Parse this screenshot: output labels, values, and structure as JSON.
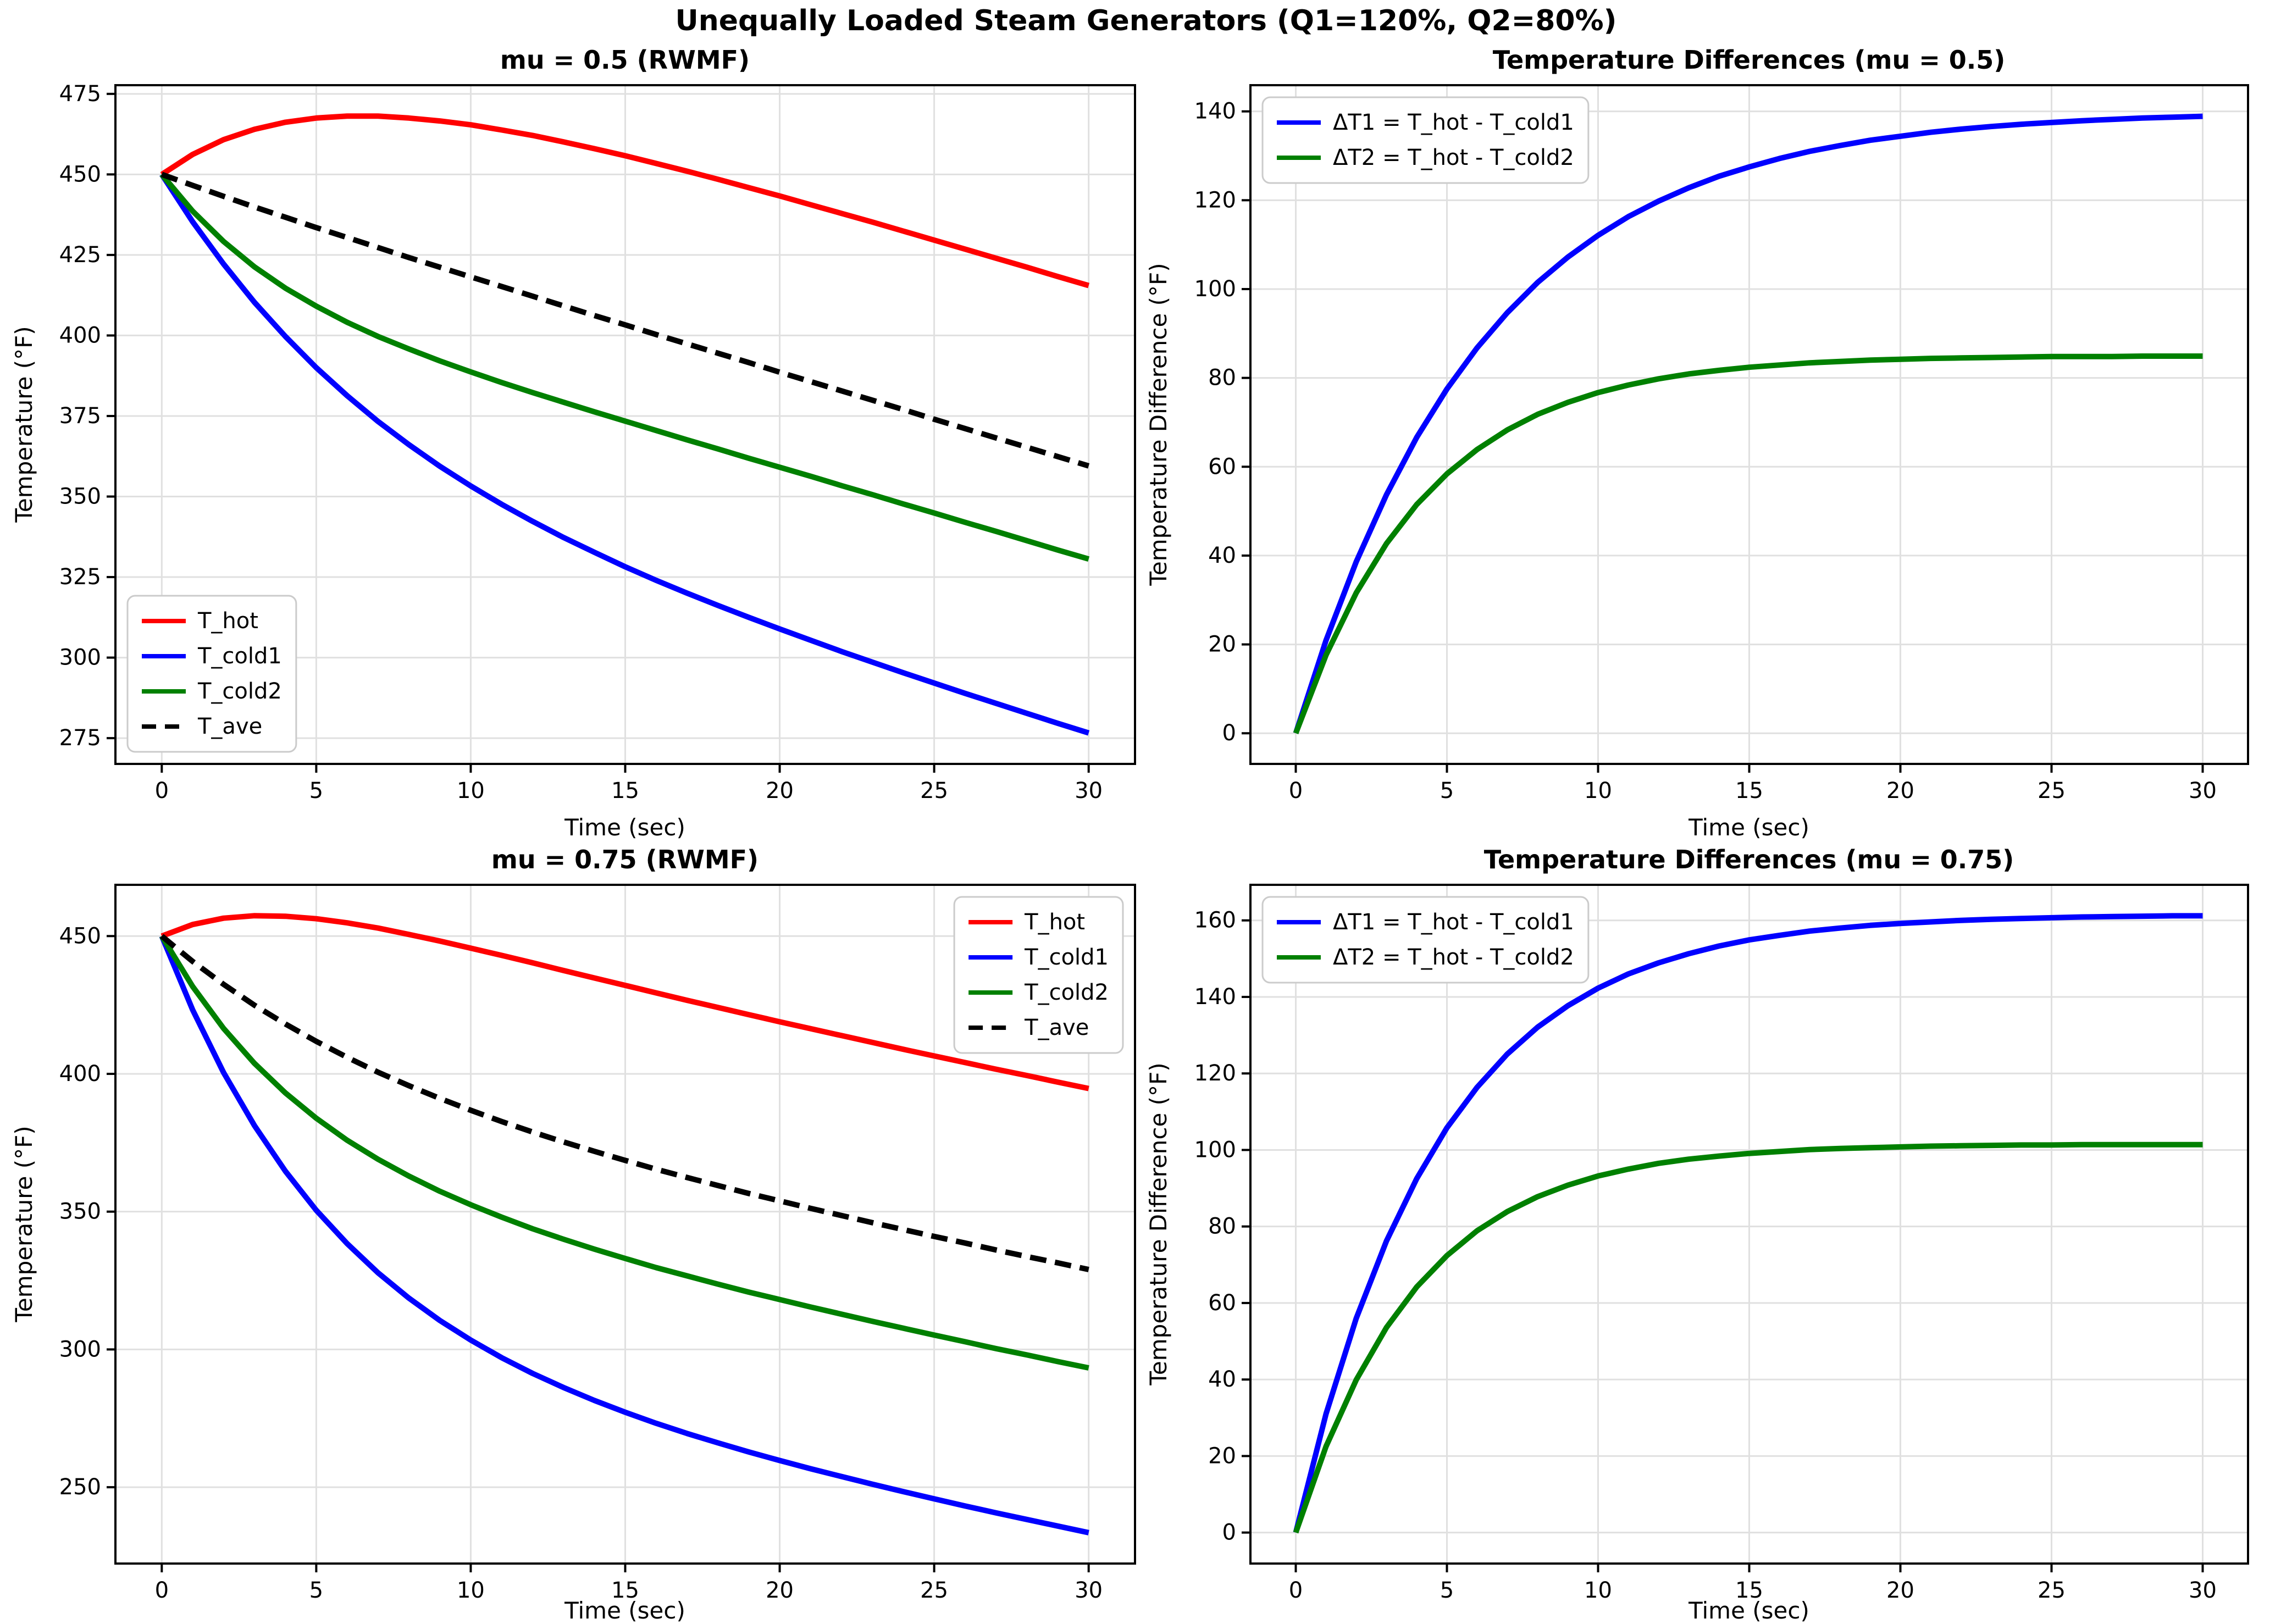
{
  "figure": {
    "suptitle": "Unequally Loaded Steam Generators (Q1=120%, Q2=80%)"
  },
  "colors": {
    "t_hot": "#ff0000",
    "t_cold1": "#0000ff",
    "t_cold2": "#008000",
    "t_ave": "#000000",
    "grid": "#e0e0e0",
    "legend_border": "#cbcbcb"
  },
  "chart_data": [
    {
      "type": "line",
      "title": "mu = 0.5 (RWMF)",
      "xlabel": "Time (sec)",
      "ylabel": "Temperature (°F)",
      "xlim": [
        -1.5,
        31.5
      ],
      "ylim": [
        267.0,
        477.7
      ],
      "xticks": [
        0,
        5,
        10,
        15,
        20,
        25,
        30
      ],
      "yticks": [
        275,
        300,
        325,
        350,
        375,
        400,
        425,
        450,
        475
      ],
      "grid": true,
      "legend": "lower left",
      "x": [
        0,
        1,
        2,
        3,
        4,
        5,
        6,
        7,
        8,
        9,
        10,
        11,
        12,
        13,
        14,
        15,
        16,
        17,
        18,
        19,
        20,
        21,
        22,
        23,
        24,
        25,
        26,
        27,
        28,
        29,
        30
      ],
      "series": [
        {
          "name": "T_hot",
          "color": "#ff0000",
          "linestyle": "solid",
          "values": [
            450.0,
            456.2,
            460.8,
            464.0,
            466.2,
            467.5,
            468.1,
            468.1,
            467.5,
            466.6,
            465.4,
            463.8,
            462.1,
            460.1,
            458.0,
            455.8,
            453.4,
            451.0,
            448.5,
            445.9,
            443.3,
            440.6,
            437.9,
            435.2,
            432.4,
            429.6,
            426.8,
            424.0,
            421.2,
            418.3,
            415.5
          ]
        },
        {
          "name": "T_cold1",
          "color": "#0000ff",
          "linestyle": "solid",
          "values": [
            450.0,
            435.3,
            422.2,
            410.3,
            399.7,
            390.0,
            381.3,
            373.3,
            366.1,
            359.4,
            353.3,
            347.6,
            342.3,
            337.3,
            332.7,
            328.2,
            324.0,
            320.0,
            316.2,
            312.5,
            308.9,
            305.4,
            301.9,
            298.6,
            295.3,
            292.1,
            288.9,
            285.8,
            282.7,
            279.6,
            276.6
          ]
        },
        {
          "name": "T_cold2",
          "color": "#008000",
          "linestyle": "solid",
          "values": [
            450.0,
            438.6,
            429.2,
            421.3,
            414.7,
            409.1,
            404.1,
            399.7,
            395.8,
            392.1,
            388.7,
            385.4,
            382.3,
            379.3,
            376.3,
            373.4,
            370.5,
            367.6,
            364.8,
            361.9,
            359.1,
            356.3,
            353.4,
            350.6,
            347.7,
            344.9,
            342.0,
            339.2,
            336.3,
            333.4,
            330.6
          ]
        },
        {
          "name": "T_ave",
          "color": "#000000",
          "linestyle": "dashed",
          "values": [
            450.0,
            446.6,
            443.2,
            439.9,
            436.7,
            433.5,
            430.4,
            427.3,
            424.2,
            421.2,
            418.2,
            415.2,
            412.2,
            409.2,
            406.2,
            403.3,
            400.3,
            397.4,
            394.5,
            391.6,
            388.6,
            385.7,
            382.8,
            379.9,
            377.0,
            374.0,
            371.1,
            368.2,
            365.3,
            362.4,
            359.5
          ]
        }
      ]
    },
    {
      "type": "line",
      "title": "Temperature Differences (mu = 0.5)",
      "xlabel": "Time (sec)",
      "ylabel": "Temperature Difference (°F)",
      "xlim": [
        -1.5,
        31.5
      ],
      "ylim": [
        -6.9,
        145.9
      ],
      "xticks": [
        0,
        5,
        10,
        15,
        20,
        25,
        30
      ],
      "yticks": [
        0,
        20,
        40,
        60,
        80,
        100,
        120,
        140
      ],
      "grid": true,
      "legend": "upper left",
      "x": [
        0,
        1,
        2,
        3,
        4,
        5,
        6,
        7,
        8,
        9,
        10,
        11,
        12,
        13,
        14,
        15,
        16,
        17,
        18,
        19,
        20,
        21,
        22,
        23,
        24,
        25,
        26,
        27,
        28,
        29,
        30
      ],
      "series": [
        {
          "name": "ΔT1 = T_hot - T_cold1",
          "color": "#0000ff",
          "linestyle": "solid",
          "values": [
            0.0,
            20.9,
            38.6,
            53.7,
            66.6,
            77.5,
            86.8,
            94.7,
            101.5,
            107.2,
            112.1,
            116.3,
            119.8,
            122.8,
            125.4,
            127.5,
            129.4,
            131.0,
            132.3,
            133.5,
            134.4,
            135.3,
            136.0,
            136.6,
            137.1,
            137.5,
            137.9,
            138.2,
            138.5,
            138.7,
            138.9
          ]
        },
        {
          "name": "ΔT2 = T_hot - T_cold2",
          "color": "#008000",
          "linestyle": "solid",
          "values": [
            0.0,
            17.6,
            31.6,
            42.7,
            51.5,
            58.4,
            63.9,
            68.3,
            71.8,
            74.5,
            76.7,
            78.4,
            79.8,
            80.9,
            81.7,
            82.4,
            82.9,
            83.4,
            83.7,
            84.0,
            84.2,
            84.4,
            84.5,
            84.6,
            84.7,
            84.8,
            84.8,
            84.8,
            84.9,
            84.9,
            84.9
          ]
        }
      ]
    },
    {
      "type": "line",
      "title": "mu = 0.75 (RWMF)",
      "xlabel": "Time (sec)",
      "ylabel": "Temperature (°F)",
      "xlim": [
        -1.5,
        31.5
      ],
      "ylim": [
        222.3,
        468.6
      ],
      "xticks": [
        0,
        5,
        10,
        15,
        20,
        25,
        30
      ],
      "yticks": [
        250,
        300,
        350,
        400,
        450
      ],
      "grid": true,
      "legend": "upper right",
      "x": [
        0,
        1,
        2,
        3,
        4,
        5,
        6,
        7,
        8,
        9,
        10,
        11,
        12,
        13,
        14,
        15,
        16,
        17,
        18,
        19,
        20,
        21,
        22,
        23,
        24,
        25,
        26,
        27,
        28,
        29,
        30
      ],
      "series": [
        {
          "name": "T_hot",
          "color": "#ff0000",
          "linestyle": "solid",
          "values": [
            450.0,
            454.2,
            456.5,
            457.4,
            457.2,
            456.3,
            454.8,
            452.9,
            450.6,
            448.2,
            445.6,
            443.0,
            440.3,
            437.5,
            434.8,
            432.1,
            429.4,
            426.7,
            424.1,
            421.5,
            418.9,
            416.4,
            413.9,
            411.4,
            408.9,
            406.5,
            404.1,
            401.7,
            399.4,
            397.0,
            394.7
          ]
        },
        {
          "name": "T_cold1",
          "color": "#0000ff",
          "linestyle": "solid",
          "values": [
            450.0,
            423.2,
            400.5,
            381.2,
            364.7,
            350.5,
            338.4,
            327.8,
            318.6,
            310.5,
            303.4,
            297.0,
            291.3,
            286.2,
            281.5,
            277.2,
            273.2,
            269.5,
            266.1,
            262.8,
            259.7,
            256.7,
            253.9,
            251.1,
            248.4,
            245.8,
            243.2,
            240.7,
            238.3,
            235.9,
            233.5
          ]
        },
        {
          "name": "T_cold2",
          "color": "#008000",
          "linestyle": "solid",
          "values": [
            450.0,
            431.7,
            416.5,
            403.8,
            393.1,
            383.9,
            375.9,
            369.0,
            362.9,
            357.4,
            352.5,
            348.0,
            343.8,
            340.0,
            336.4,
            333.0,
            329.7,
            326.7,
            323.7,
            320.8,
            318.1,
            315.4,
            312.8,
            310.2,
            307.7,
            305.2,
            302.8,
            300.3,
            298.0,
            295.6,
            293.3
          ]
        },
        {
          "name": "T_ave",
          "color": "#000000",
          "linestyle": "dashed",
          "values": [
            450.0,
            440.8,
            432.5,
            424.9,
            418.1,
            411.8,
            406.0,
            400.6,
            395.7,
            391.1,
            386.8,
            382.7,
            378.9,
            375.3,
            371.9,
            368.6,
            365.4,
            362.4,
            359.5,
            356.6,
            353.9,
            351.2,
            348.6,
            346.0,
            343.5,
            341.0,
            338.6,
            336.1,
            333.7,
            331.4,
            329.0
          ]
        }
      ]
    },
    {
      "type": "line",
      "title": "Temperature Differences (mu = 0.75)",
      "xlabel": "Time (sec)",
      "ylabel": "Temperature Difference (°F)",
      "xlim": [
        -1.5,
        31.5
      ],
      "ylim": [
        -8.1,
        169.3
      ],
      "xticks": [
        0,
        5,
        10,
        15,
        20,
        25,
        30
      ],
      "yticks": [
        0,
        20,
        40,
        60,
        80,
        100,
        120,
        140,
        160
      ],
      "grid": true,
      "legend": "upper left",
      "x": [
        0,
        1,
        2,
        3,
        4,
        5,
        6,
        7,
        8,
        9,
        10,
        11,
        12,
        13,
        14,
        15,
        16,
        17,
        18,
        19,
        20,
        21,
        22,
        23,
        24,
        25,
        26,
        27,
        28,
        29,
        30
      ],
      "series": [
        {
          "name": "ΔT1 = T_hot - T_cold1",
          "color": "#0000ff",
          "linestyle": "solid",
          "values": [
            0.0,
            31.0,
            56.0,
            76.2,
            92.5,
            105.8,
            116.4,
            125.1,
            132.1,
            137.7,
            142.3,
            146.0,
            148.9,
            151.3,
            153.3,
            154.9,
            156.1,
            157.2,
            158.0,
            158.7,
            159.2,
            159.6,
            160.0,
            160.3,
            160.5,
            160.7,
            160.9,
            161.0,
            161.1,
            161.2,
            161.2
          ]
        },
        {
          "name": "ΔT2 = T_hot - T_cold2",
          "color": "#008000",
          "linestyle": "solid",
          "values": [
            0.0,
            22.5,
            39.9,
            53.6,
            64.2,
            72.4,
            78.9,
            83.9,
            87.8,
            90.8,
            93.2,
            95.0,
            96.5,
            97.6,
            98.4,
            99.1,
            99.6,
            100.1,
            100.4,
            100.6,
            100.8,
            101.0,
            101.1,
            101.2,
            101.3,
            101.3,
            101.4,
            101.4,
            101.4,
            101.4,
            101.4
          ]
        }
      ]
    }
  ]
}
